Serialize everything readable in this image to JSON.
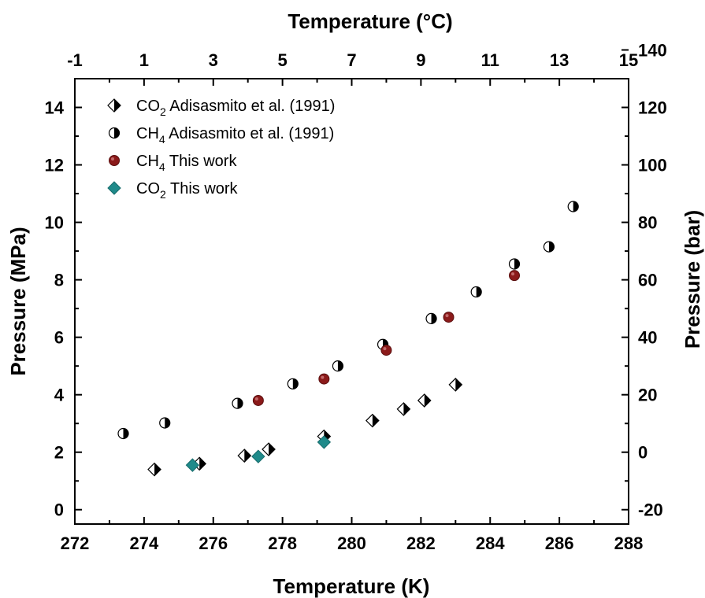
{
  "chart_data": {
    "type": "scatter",
    "x_label": "Temperature (K)",
    "x_top_label": "Temperature (°C)",
    "y_label": "Pressure (MPa)",
    "y_right_label": "Pressure (bar)",
    "xlim": [
      272,
      288
    ],
    "ylim": [
      -0.5,
      15
    ],
    "x_ticks": [
      "272",
      "274",
      "276",
      "278",
      "280",
      "282",
      "284",
      "286",
      "288"
    ],
    "x_top_ticks": [
      "-1",
      "1",
      "3",
      "5",
      "7",
      "9",
      "11",
      "13",
      "15"
    ],
    "y_ticks": [
      "0",
      "2",
      "4",
      "6",
      "8",
      "10",
      "12",
      "14"
    ],
    "y_right_ticks": [
      "-20",
      "0",
      "20",
      "40",
      "60",
      "80",
      "100",
      "120",
      "140"
    ],
    "grid": false,
    "legend_position": "top-left",
    "series": [
      {
        "name": "CO2 Adisasmito et al. (1991)",
        "name_main": "CO",
        "name_sub": "2",
        "name_rest": " Adisasmito et al. (1991)",
        "marker": "half-diamond",
        "color": "#000000",
        "x": [
          274.3,
          275.6,
          276.9,
          277.6,
          279.2,
          280.6,
          281.5,
          282.1,
          283.0
        ],
        "y": [
          1.4,
          1.6,
          1.88,
          2.1,
          2.55,
          3.1,
          3.5,
          3.8,
          4.35
        ]
      },
      {
        "name": "CH4 Adisasmito et al. (1991)",
        "name_main": "CH",
        "name_sub": "4",
        "name_rest": " Adisasmito et al. (1991)",
        "marker": "half-circle",
        "color": "#000000",
        "x": [
          273.4,
          274.6,
          276.7,
          278.3,
          279.6,
          280.9,
          282.3,
          283.6,
          284.7,
          285.7,
          286.4
        ],
        "y": [
          2.65,
          3.02,
          3.7,
          4.38,
          5.0,
          5.75,
          6.65,
          7.58,
          8.55,
          9.15,
          10.55
        ]
      },
      {
        "name": "CH4 This work",
        "name_main": "CH",
        "name_sub": "4",
        "name_rest": " This work",
        "marker": "circle",
        "color": "#8b1a1a",
        "x": [
          277.3,
          279.2,
          281.0,
          282.8,
          284.7
        ],
        "y": [
          3.8,
          4.55,
          5.55,
          6.7,
          8.15
        ]
      },
      {
        "name": "CO2 This work",
        "name_main": "CO",
        "name_sub": "2",
        "name_rest": " This work",
        "marker": "diamond",
        "color": "#1f8a8a",
        "x": [
          275.4,
          277.3,
          279.2
        ],
        "y": [
          1.55,
          1.85,
          2.35
        ]
      }
    ]
  }
}
